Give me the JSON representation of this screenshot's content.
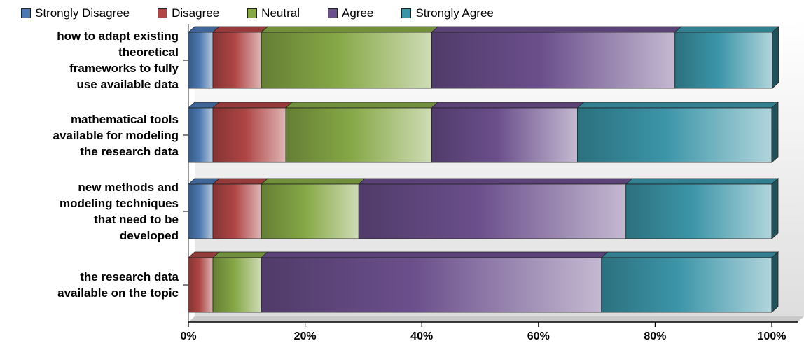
{
  "chart_data": {
    "type": "bar",
    "stacked": true,
    "orientation": "horizontal",
    "normalized_percent": true,
    "categories": [
      "how to adapt existing theoretical frameworks to fully use available data",
      "mathematical tools available for modeling the research data",
      "new methods and modeling techniques that need to be developed",
      "the research data available on the topic"
    ],
    "category_lines": [
      [
        "how to adapt existing",
        "theoretical",
        "frameworks to fully",
        "use available data"
      ],
      [
        "mathematical tools",
        "available for modeling",
        "the research data"
      ],
      [
        "new methods and",
        "modeling techniques",
        "that need to be",
        "developed"
      ],
      [
        "the research data",
        "available on the topic"
      ]
    ],
    "series": [
      {
        "name": "Strongly Disagree",
        "color": "#4a78b0",
        "values": [
          4.2,
          4.2,
          4.2,
          0
        ]
      },
      {
        "name": "Disagree",
        "color": "#b04545",
        "values": [
          8.3,
          12.5,
          8.3,
          4.2
        ]
      },
      {
        "name": "Neutral",
        "color": "#86a846",
        "values": [
          29.2,
          25.0,
          16.7,
          8.3
        ]
      },
      {
        "name": "Agree",
        "color": "#6b4f8c",
        "values": [
          41.7,
          25.0,
          45.8,
          58.3
        ]
      },
      {
        "name": "Strongly Agree",
        "color": "#3b95a8",
        "values": [
          16.7,
          33.3,
          25.0,
          29.2
        ]
      }
    ],
    "xlim": [
      0,
      100
    ],
    "xticks": [
      "0%",
      "20%",
      "40%",
      "60%",
      "80%",
      "100%"
    ],
    "legend": "top",
    "grid": false
  }
}
